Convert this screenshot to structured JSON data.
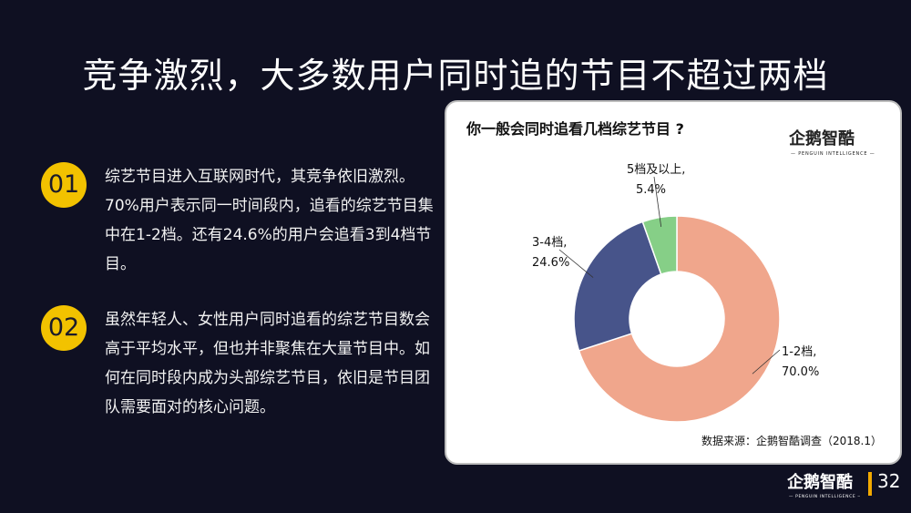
{
  "slide": {
    "title": "竞争激烈，大多数用户同时追的节目不超过两档",
    "points": [
      {
        "number": "01",
        "text": "综艺节目进入互联网时代，其竞争依旧激烈。70%用户表示同一时间段内，追看的综艺节目集中在1-2档。还有24.6%的用户会追看3到4档节目。"
      },
      {
        "number": "02",
        "text": "虽然年轻人、女性用户同时追看的综艺节目数会高于平均水平，但也并非聚焦在大量节目中。如何在同时段内成为头部综艺节目，依旧是节目团队需要面对的核心问题。"
      }
    ],
    "page_number": "32",
    "logo": {
      "name": "企鹅智酷",
      "subtitle": "PENGUIN INTELLIGENCE"
    }
  },
  "chart_data": {
    "type": "pie",
    "title": "你一般会同时追看几档综艺节目 ?",
    "categories": [
      "1-2档,",
      "3-4档,",
      "5档及以上,"
    ],
    "values": [
      70.0,
      24.6,
      5.4
    ],
    "value_labels": [
      "70.0%",
      "24.6%",
      "5.4%"
    ],
    "colors": [
      "#f0a68c",
      "#47548a",
      "#86cf87"
    ],
    "donut": true,
    "source": "数据来源：企鹅智酷调查（2018.1）"
  }
}
